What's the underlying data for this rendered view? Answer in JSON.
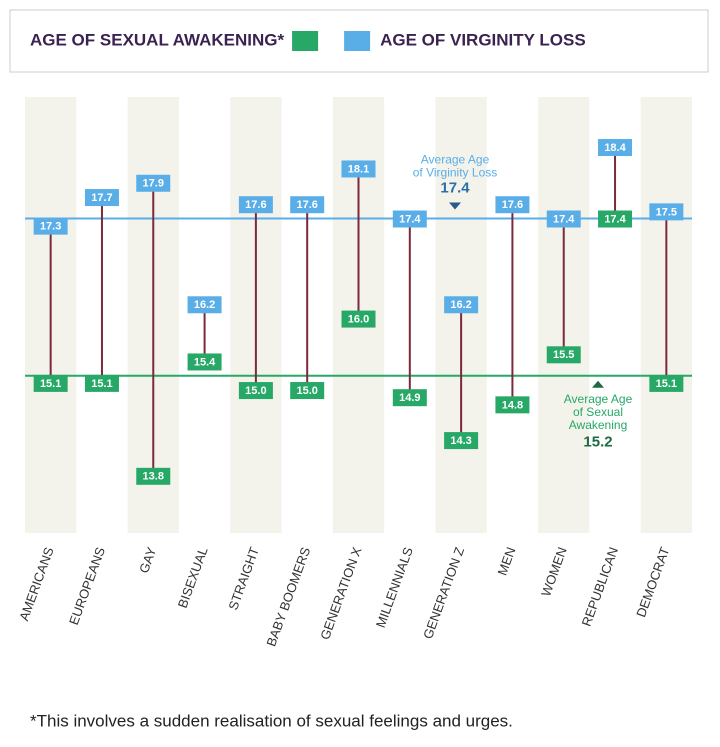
{
  "chart_data": {
    "type": "dumbbell",
    "categories": [
      "AMERICANS",
      "EUROPEANS",
      "GAY",
      "BISEXUAL",
      "STRAIGHT",
      "BABY BOOMERS",
      "GENERATION X",
      "MILLENNIALS",
      "GENERATION Z",
      "MEN",
      "WOMEN",
      "REPUBLICAN",
      "DEMOCRAT"
    ],
    "series": [
      {
        "name": "AGE OF SEXUAL AWAKENING*",
        "color": "#27a867",
        "values": [
          15.1,
          15.1,
          13.8,
          15.4,
          15.0,
          15.0,
          16.0,
          14.9,
          14.3,
          14.8,
          15.5,
          17.4,
          15.1
        ],
        "value_labels": [
          "15.1",
          "15.1",
          "13.8",
          "15.4",
          "15.0",
          "15.0",
          "16.0",
          "14.9",
          "14.3",
          "14.8",
          "15.5",
          "17.4",
          "15.1"
        ]
      },
      {
        "name": "AGE OF VIRGINITY LOSS",
        "color": "#5aaee8",
        "values": [
          17.3,
          17.7,
          17.9,
          16.2,
          17.6,
          17.6,
          18.1,
          17.4,
          16.2,
          17.6,
          17.4,
          18.4,
          17.5
        ],
        "value_labels": [
          "17.3",
          "17.7",
          "17.9",
          "16.2",
          "17.6",
          "17.6",
          "18.1",
          "17.4",
          "16.2",
          "17.6",
          "17.4",
          "18.4",
          "17.5"
        ]
      }
    ],
    "ylim": [
      13.0,
      19.1
    ],
    "annotations": [
      {
        "lines": [
          "Average Age",
          "of Virginity Loss"
        ],
        "value": 17.4,
        "color": "#5aaee8"
      },
      {
        "lines": [
          "Average Age",
          "of Sexual",
          "Awakening"
        ],
        "value": 15.2,
        "color": "#27a867"
      }
    ],
    "footnote": "*This involves a sudden realisation of sexual feelings and urges."
  }
}
